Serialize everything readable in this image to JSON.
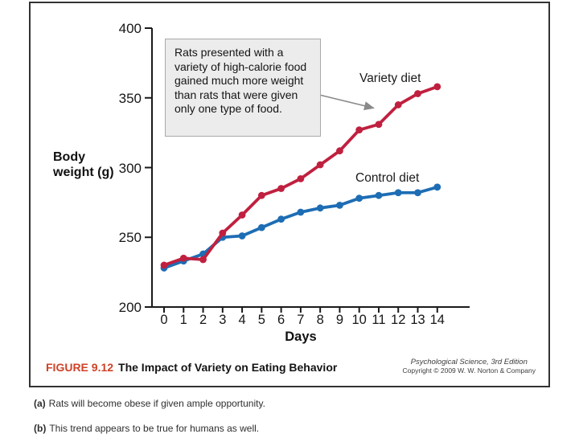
{
  "figure": {
    "label": "FIGURE 9.12",
    "title": "The Impact of Variety on Eating Behavior",
    "source_title": "Psychological Science, 3rd Edition",
    "source_copyright": "Copyright © 2009 W. W. Norton & Company"
  },
  "captions": {
    "a_label": "(a)",
    "a_text": "Rats will become obese if given ample opportunity.",
    "b_label": "(b)",
    "b_text": "This trend appears to be true for humans as well."
  },
  "chart_data": {
    "type": "line",
    "title": "The Impact of Variety on Eating Behavior",
    "xlabel": "Days",
    "ylabel": "Body weight (g)",
    "x": [
      0,
      1,
      2,
      3,
      4,
      5,
      6,
      7,
      8,
      9,
      10,
      11,
      12,
      13,
      14
    ],
    "xlim": [
      0,
      14
    ],
    "ylim": [
      200,
      400
    ],
    "yticks": [
      200,
      250,
      300,
      350,
      400
    ],
    "grid": false,
    "legend_position": "inline-labels",
    "annotation": "Rats presented with a variety of high-calorie food gained much more weight than rats that were given only one type of food.",
    "series": [
      {
        "name": "Variety diet",
        "color": "#c0203f",
        "values": [
          230,
          235,
          234,
          253,
          266,
          280,
          285,
          292,
          302,
          312,
          327,
          331,
          345,
          353,
          358
        ]
      },
      {
        "name": "Control diet",
        "color": "#1d6db4",
        "values": [
          228,
          233,
          238,
          250,
          251,
          257,
          263,
          268,
          271,
          273,
          278,
          280,
          282,
          282,
          286
        ]
      }
    ]
  },
  "colors": {
    "variety_line": "#c0203f",
    "control_line": "#1d6db4",
    "axis": "#1a1a1a",
    "figure_label_red": "#cf4227",
    "annotation_bg": "#ececec",
    "arrow_gray": "#8a8a8a"
  }
}
